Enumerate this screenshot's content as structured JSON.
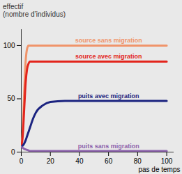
{
  "chart_data": {
    "type": "line",
    "y_label": "effectif\n(nombre d’individus)",
    "x_label": "pas de temps",
    "x": [
      0,
      1,
      2,
      3,
      4,
      5,
      6,
      8,
      10,
      15,
      20,
      30,
      40,
      60,
      80,
      100
    ],
    "series": [
      {
        "name": "source sans migration",
        "color": "#f0946a",
        "values": [
          5,
          20,
          55,
          85,
          97,
          100,
          100,
          100,
          100,
          100,
          100,
          100,
          100,
          100,
          100,
          100
        ]
      },
      {
        "name": "source avec migration",
        "color": "#e3241c",
        "values": [
          5,
          15,
          40,
          65,
          78,
          83,
          85,
          85,
          85,
          85,
          85,
          85,
          85,
          85,
          85,
          85
        ]
      },
      {
        "name": "puits avec migration",
        "color": "#1b2380",
        "values": [
          5,
          6,
          8,
          11,
          15,
          19,
          23,
          31,
          37,
          44,
          47,
          48,
          48,
          48,
          48,
          48
        ]
      },
      {
        "name": "puits sans migration",
        "color": "#8c62ac",
        "values": [
          5,
          4,
          3,
          2.5,
          2,
          1.5,
          1,
          1,
          1,
          1,
          1,
          1,
          1,
          1,
          1,
          1
        ]
      }
    ],
    "xlim": [
      0,
      105
    ],
    "xticks": [
      0,
      20,
      40,
      60,
      80,
      100
    ],
    "ylim": [
      0,
      115
    ],
    "yticks": [
      0,
      50,
      100
    ],
    "grid": false
  }
}
